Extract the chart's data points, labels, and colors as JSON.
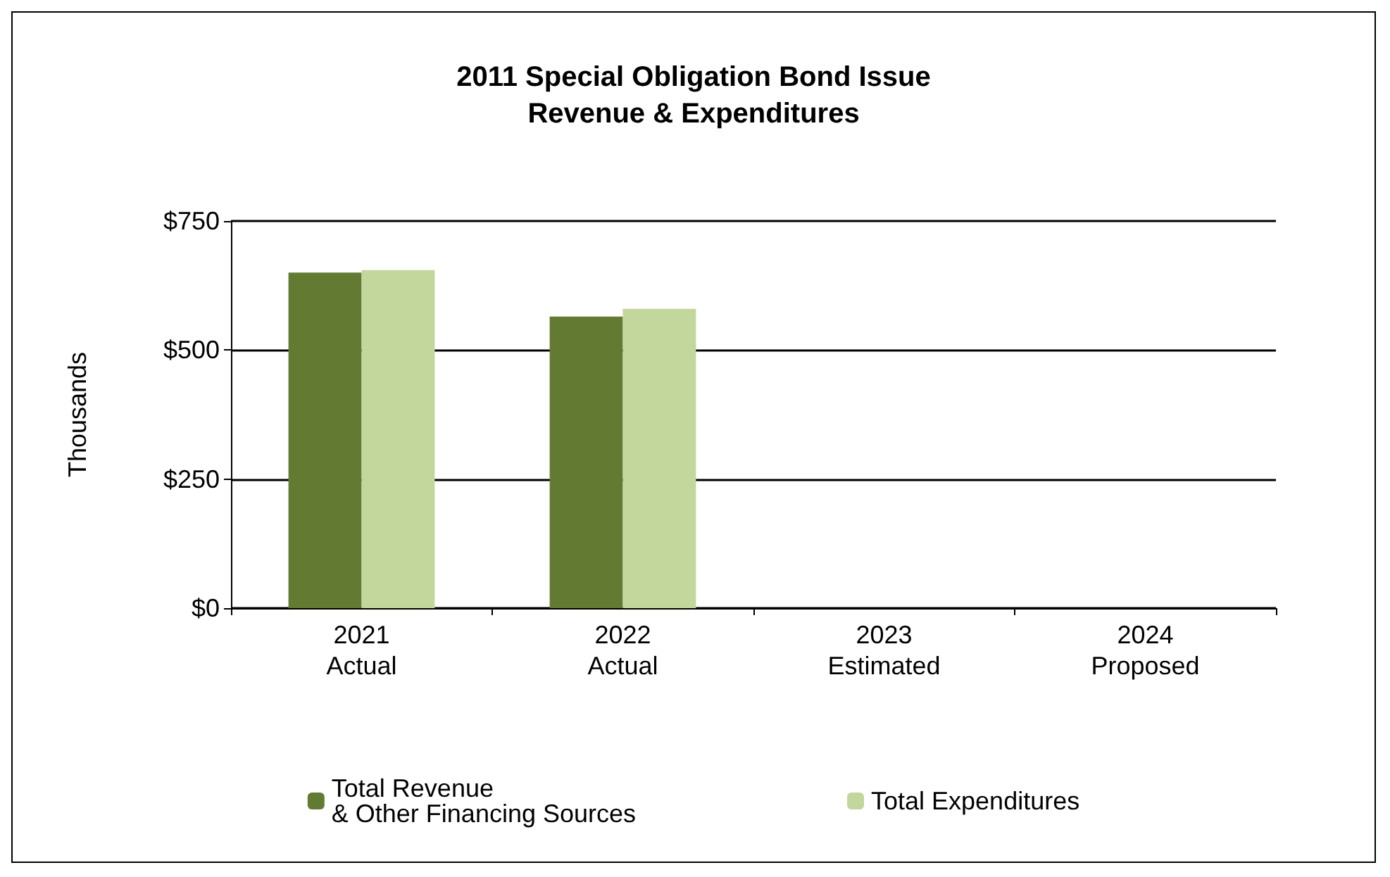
{
  "chart_data": {
    "type": "bar",
    "title": "2011 Special Obligation Bond Issue\nRevenue & Expenditures",
    "ylabel": "Thousands",
    "categories": [
      "2021\nActual",
      "2022\nActual",
      "2023\nEstimated",
      "2024\nProposed"
    ],
    "series": [
      {
        "name": "Total Revenue\n& Other Financing Sources",
        "color": "#637a33",
        "values": [
          650,
          565,
          0,
          0
        ]
      },
      {
        "name": "Total Expenditures",
        "color": "#c3d69b",
        "values": [
          655,
          580,
          0,
          0
        ]
      }
    ],
    "ylim": [
      0,
      750
    ],
    "yticks": [
      {
        "value": 0,
        "label": "$0"
      },
      {
        "value": 250,
        "label": "$250"
      },
      {
        "value": 500,
        "label": "$500"
      },
      {
        "value": 750,
        "label": "$750"
      }
    ],
    "grid": "y",
    "legend": "bottom"
  }
}
